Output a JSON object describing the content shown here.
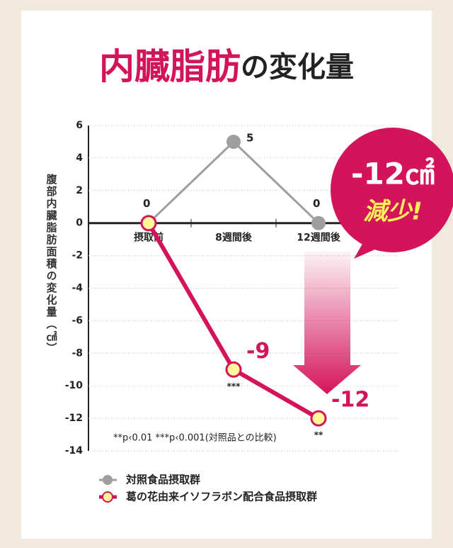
{
  "chart_data": {
    "type": "line",
    "title": {
      "highlight": "内臓脂肪",
      "rest": "の変化量"
    },
    "y_label": "腹部内臓脂肪面積の変化量（㎠）",
    "categories": [
      "摂取前",
      "8週間後",
      "12週間後"
    ],
    "series": [
      {
        "name": "対照食品摂取群",
        "color": "#9e9e9e",
        "values": [
          0,
          5,
          0
        ]
      },
      {
        "name": "葛の花由来イソフラボン配合食品摂取群",
        "color": "#d4145a",
        "values": [
          0,
          -9,
          -12
        ],
        "significance": [
          null,
          "***",
          "**"
        ]
      }
    ],
    "ylim": [
      -14,
      6
    ],
    "yticks": [
      -14,
      -12,
      -10,
      -8,
      -6,
      -4,
      -2,
      0,
      2,
      4,
      6
    ],
    "grid": true,
    "footnote": "**p‹0.01 ***p‹0.001(対照品との比較)",
    "callout": {
      "value": "-12㎠",
      "text": "減少!"
    }
  }
}
